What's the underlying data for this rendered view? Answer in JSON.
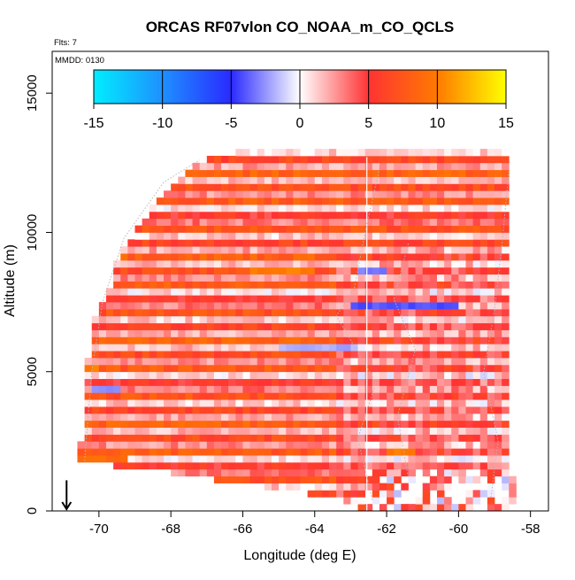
{
  "chart_data": {
    "type": "heatmap",
    "title": "ORCAS RF07vlon CO_NOAA_m_CO_QCLS",
    "flights_note": "Flts: 7",
    "date_note": "MMDD: 0130",
    "xlabel": "Longitude (deg E)",
    "ylabel": "Altitude (m)",
    "xlim": [
      -71.3,
      -57.5
    ],
    "ylim": [
      0,
      16500
    ],
    "x_ticks": [
      -70,
      -68,
      -66,
      -64,
      -62,
      -60,
      -58
    ],
    "x_tick_labels": [
      "-70",
      "-68",
      "-66",
      "-64",
      "-62",
      "-60",
      "-58"
    ],
    "y_ticks": [
      0,
      5000,
      10000,
      15000
    ],
    "y_tick_labels": [
      "0",
      "5000",
      "10000",
      "15000"
    ],
    "colorbar": {
      "range": [
        -15,
        15
      ],
      "ticks": [
        -15,
        -10,
        -5,
        0,
        5,
        10,
        15
      ],
      "tick_labels": [
        "-15",
        "-10",
        "-5",
        "0",
        "5",
        "10",
        "15"
      ],
      "colors": [
        "#00eeff",
        "#1e90ff",
        "#2a2aff",
        "#ffffff",
        "#ff3333",
        "#ff7a00",
        "#ffff00"
      ]
    },
    "annotation_arrow": {
      "longitude": -70.9,
      "altitude": 500
    },
    "cell_size": {
      "lon": 0.2,
      "alt": 250
    },
    "domain_profile": {
      "altitudes": [
        1750,
        2500,
        3500,
        5000,
        6000,
        7000,
        8000,
        9000,
        10000,
        11000,
        11750,
        12500,
        13000
      ],
      "lon_left": [
        -70.8,
        -70.6,
        -70.6,
        -70.6,
        -70.2,
        -70.2,
        -69.8,
        -69.6,
        -69.1,
        -68.6,
        -68.1,
        -67.4,
        -65.8
      ]
    },
    "domain_right_lon": -58.6,
    "domain_top_alt": 12900,
    "deep_bottom_left": [
      [
        1750,
        -70.8
      ],
      [
        1500,
        -68.6
      ],
      [
        1250,
        -67.4
      ],
      [
        1000,
        -66.2
      ],
      [
        750,
        -65.0
      ],
      [
        500,
        -63.6
      ],
      [
        0,
        -62.6
      ]
    ],
    "cell_value_model": "striated positive anomalies; strong red bands roughly every 500-750 m",
    "notable_bands": [
      {
        "altitude": 4250,
        "lon_start": -70.2,
        "lon_end": -69.4,
        "value": -3
      },
      {
        "altitude": 5750,
        "lon_start": -65.0,
        "lon_end": -62.8,
        "value": -2
      },
      {
        "altitude": 7250,
        "lon_start": -63.0,
        "lon_end": -60.0,
        "value": -4
      },
      {
        "altitude": 8500,
        "lon_start": -62.8,
        "lon_end": -62.0,
        "value": -3
      },
      {
        "altitude": 8500,
        "lon_start": -65.8,
        "lon_end": -64.0,
        "value": 10
      },
      {
        "altitude": 5000,
        "lon_start": -70.6,
        "lon_end": -70.2,
        "value": 10
      },
      {
        "altitude": 1750,
        "lon_start": -70.8,
        "lon_end": -69.2,
        "value": 9
      },
      {
        "altitude": 2000,
        "lon_start": -62.0,
        "lon_end": -61.2,
        "value": 10
      },
      {
        "altitude": 12000,
        "lon_start": -68.4,
        "lon_end": -67.4,
        "value": 9
      }
    ],
    "seed": 7
  }
}
